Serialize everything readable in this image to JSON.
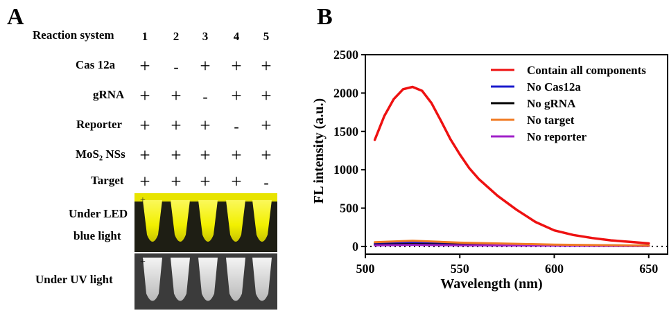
{
  "panel_a": {
    "letter": "A",
    "header_label": "Reaction system",
    "columns": [
      "1",
      "2",
      "3",
      "4",
      "5"
    ],
    "rows": [
      {
        "label": "Cas 12a",
        "marks": [
          "+",
          "-",
          "+",
          "+",
          "+"
        ]
      },
      {
        "label": "gRNA",
        "marks": [
          "+",
          "+",
          "-",
          "+",
          "+"
        ]
      },
      {
        "label": "Reporter",
        "marks": [
          "+",
          "+",
          "+",
          "-",
          "+"
        ]
      },
      {
        "label": "MoS₂ NSs",
        "marks": [
          "+",
          "+",
          "+",
          "+",
          "+"
        ]
      },
      {
        "label": "Target",
        "marks": [
          "+",
          "+",
          "+",
          "+",
          "-"
        ]
      }
    ],
    "photo_labels": {
      "led_line1": "Under LED",
      "led_line2": "blue light",
      "uv": "Under UV light"
    },
    "colors": {
      "led_fluorescence": "#f2f000",
      "uv_tube": "#d8d8d8"
    }
  },
  "panel_b": {
    "letter": "B"
  },
  "chart_data": {
    "type": "line",
    "xlabel": "Wavelength (nm)",
    "ylabel": "FL intensity (a.u.)",
    "xlim": [
      500,
      660
    ],
    "ylim": [
      -100,
      2500
    ],
    "xticks": [
      "500",
      "550",
      "600",
      "650"
    ],
    "yticks": [
      "0",
      "500",
      "1000",
      "1500",
      "2000",
      "2500"
    ],
    "legend_position": "top-right",
    "baseline_dotted_y": 0,
    "series": [
      {
        "name": "Contain all components",
        "color": "#ee1111",
        "x": [
          505,
          510,
          515,
          520,
          525,
          530,
          535,
          540,
          545,
          550,
          555,
          560,
          570,
          580,
          590,
          600,
          610,
          620,
          630,
          640,
          650
        ],
        "y": [
          1390,
          1700,
          1920,
          2050,
          2080,
          2030,
          1870,
          1640,
          1400,
          1200,
          1020,
          880,
          660,
          480,
          320,
          210,
          150,
          110,
          80,
          60,
          40
        ]
      },
      {
        "name": "No Cas12a",
        "color": "#1a1acc",
        "x": [
          505,
          525,
          550,
          600,
          650
        ],
        "y": [
          40,
          55,
          40,
          20,
          10
        ]
      },
      {
        "name": "No gRNA",
        "color": "#000000",
        "x": [
          505,
          525,
          550,
          600,
          650
        ],
        "y": [
          25,
          30,
          25,
          15,
          10
        ]
      },
      {
        "name": "No target",
        "color": "#f07a22",
        "x": [
          505,
          525,
          550,
          600,
          650
        ],
        "y": [
          55,
          75,
          50,
          25,
          10
        ]
      },
      {
        "name": "No reporter",
        "color": "#a020c8",
        "x": [
          505,
          525,
          550,
          600,
          650
        ],
        "y": [
          15,
          20,
          15,
          10,
          5
        ]
      }
    ]
  }
}
